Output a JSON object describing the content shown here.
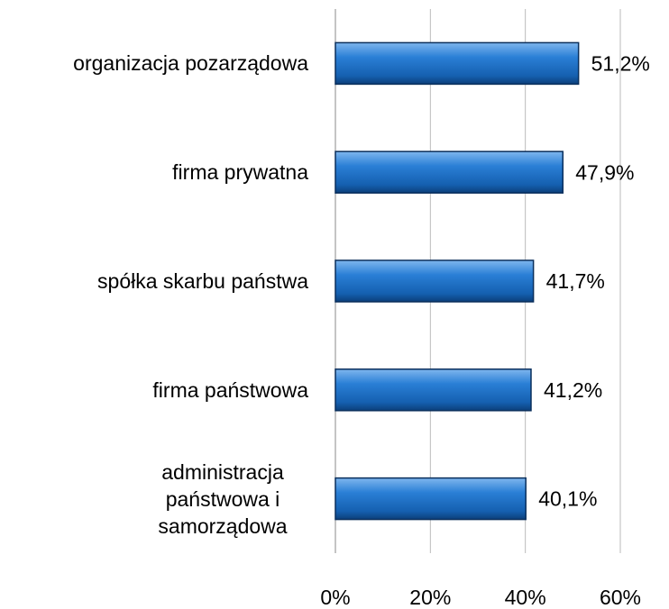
{
  "chart_data": {
    "type": "hbar",
    "categories": [
      "organizacja pozarządowa",
      "firma prywatna",
      "spółka skarbu państwa",
      "firma państwowa",
      "administracja państwowa i samorządowa"
    ],
    "values": [
      51.2,
      47.9,
      41.7,
      41.2,
      40.1
    ],
    "value_labels": [
      "51,2%",
      "47,9%",
      "41,7%",
      "41,2%",
      "40,1%"
    ],
    "color": "#1f6fc5",
    "xlim": [
      0,
      60
    ],
    "xticks": [
      {
        "value": 0,
        "label": "0%"
      },
      {
        "value": 20,
        "label": "20%"
      },
      {
        "value": 40,
        "label": "40%"
      },
      {
        "value": 60,
        "label": "60%"
      }
    ],
    "grid": true
  }
}
